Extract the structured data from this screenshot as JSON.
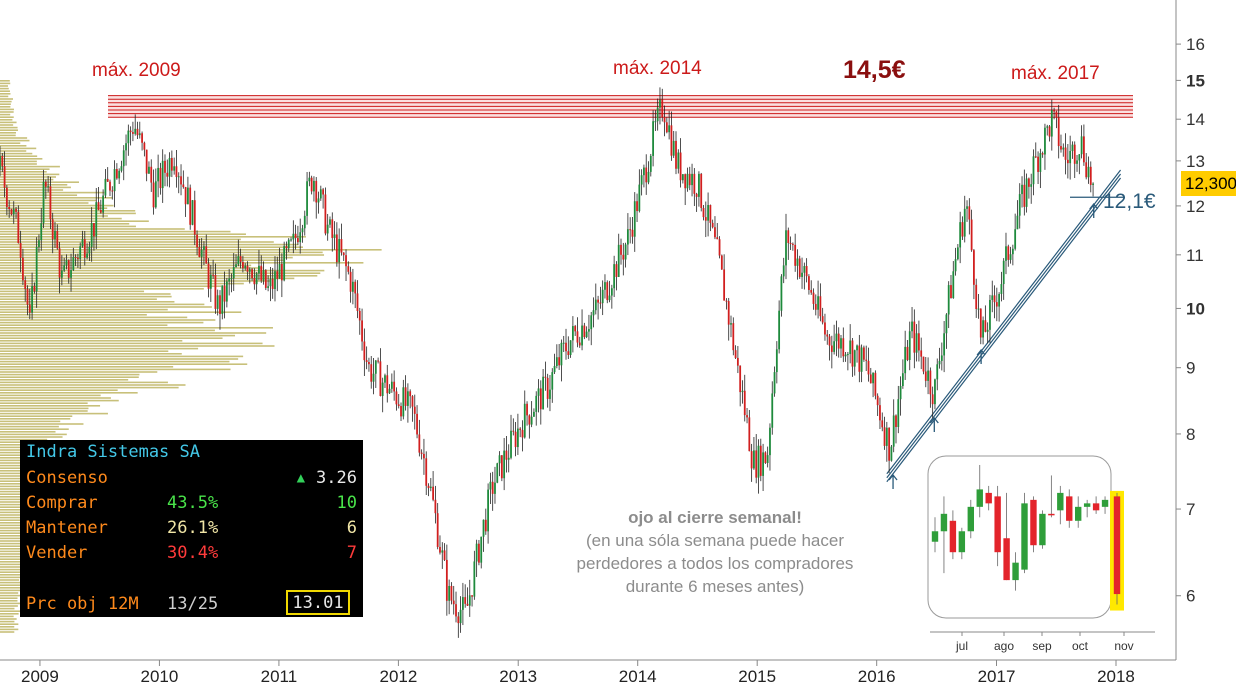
{
  "chart_data": {
    "type": "candlestick",
    "title": "",
    "instrument": "Indra Sistemas SA",
    "xlabel": "",
    "ylabel": "",
    "y_scale": "log",
    "ylim": [
      5.4,
      17
    ],
    "y_ticks": [
      6,
      7,
      8,
      9,
      10,
      11,
      12,
      13,
      14,
      15,
      16
    ],
    "x_ticks": [
      "2009",
      "2010",
      "2011",
      "2012",
      "2013",
      "2014",
      "2015",
      "2016",
      "2017",
      "2018"
    ],
    "xlim": [
      "2008-09-01",
      "2018-06-15"
    ],
    "last_price_label": "12,300",
    "resistance": {
      "label": "14,5€",
      "level": 14.3,
      "band": [
        14.05,
        14.6
      ]
    },
    "resistance_labels": [
      {
        "text": "máx. 2009",
        "date": "2009-10-01",
        "price": 14.0
      },
      {
        "text": "máx. 2014",
        "date": "2014-03-15",
        "price": 14.4
      },
      {
        "text": "máx. 2017",
        "date": "2017-06-01",
        "price": 14.0
      }
    ],
    "support_line": {
      "start": {
        "date": "2016-02-01",
        "price": 7.4
      },
      "end": {
        "date": "2018-01-15",
        "price": 12.7
      }
    },
    "support_level": {
      "label": "12,1€",
      "price": 12.1
    },
    "touch_arrows": [
      "2016-02-20",
      "2016-06-25",
      "2016-11-15",
      "2017-10-25"
    ],
    "price_path": [
      [
        "2008-09-01",
        12.8
      ],
      [
        "2008-11-01",
        11.3
      ],
      [
        "2008-12-01",
        9.7
      ],
      [
        "2009-01-15",
        12.5
      ],
      [
        "2009-03-10",
        10.5
      ],
      [
        "2009-06-15",
        11.6
      ],
      [
        "2009-10-15",
        13.9
      ],
      [
        "2009-12-15",
        12.3
      ],
      [
        "2010-02-15",
        13.2
      ],
      [
        "2010-05-20",
        10.8
      ],
      [
        "2010-07-01",
        10.0
      ],
      [
        "2010-09-15",
        11.0
      ],
      [
        "2010-12-01",
        10.3
      ],
      [
        "2011-02-15",
        11.2
      ],
      [
        "2011-04-15",
        12.7
      ],
      [
        "2011-06-01",
        11.5
      ],
      [
        "2011-08-10",
        10.5
      ],
      [
        "2011-10-01",
        9.0
      ],
      [
        "2011-12-20",
        8.6
      ],
      [
        "2012-02-15",
        8.3
      ],
      [
        "2012-04-01",
        7.4
      ],
      [
        "2012-06-01",
        6.0
      ],
      [
        "2012-07-25",
        5.8
      ],
      [
        "2012-10-15",
        7.3
      ],
      [
        "2013-01-15",
        8.2
      ],
      [
        "2013-04-01",
        8.7
      ],
      [
        "2013-06-01",
        9.4
      ],
      [
        "2013-09-01",
        10.0
      ],
      [
        "2013-12-01",
        11.3
      ],
      [
        "2014-01-15",
        12.5
      ],
      [
        "2014-02-15",
        13.5
      ],
      [
        "2014-03-20",
        14.4
      ],
      [
        "2014-05-01",
        12.9
      ],
      [
        "2014-07-01",
        12.5
      ],
      [
        "2014-09-01",
        11.0
      ],
      [
        "2014-11-01",
        9.0
      ],
      [
        "2014-12-20",
        7.6
      ],
      [
        "2015-02-01",
        7.7
      ],
      [
        "2015-04-01",
        11.4
      ],
      [
        "2015-06-01",
        10.5
      ],
      [
        "2015-08-01",
        9.5
      ],
      [
        "2015-10-01",
        9.4
      ],
      [
        "2015-12-01",
        9.0
      ],
      [
        "2016-02-10",
        7.8
      ],
      [
        "2016-04-15",
        9.6
      ],
      [
        "2016-06-25",
        8.6
      ],
      [
        "2016-08-15",
        10.4
      ],
      [
        "2016-09-30",
        12.1
      ],
      [
        "2016-11-15",
        9.4
      ],
      [
        "2017-01-15",
        10.5
      ],
      [
        "2017-03-15",
        12.0
      ],
      [
        "2017-05-01",
        13.0
      ],
      [
        "2017-06-20",
        14.0
      ],
      [
        "2017-08-01",
        13.0
      ],
      [
        "2017-09-15",
        13.5
      ],
      [
        "2017-10-25",
        12.3
      ]
    ],
    "volume_profile": "horizontal volume-by-price histogram at left, peak around 11.0",
    "inset": {
      "type": "candlestick",
      "x_ticks": [
        "jul",
        "ago",
        "sep",
        "oct",
        "nov"
      ],
      "candles": [
        {
          "o": 6.55,
          "h": 6.9,
          "l": 6.4,
          "c": 6.7,
          "up": true
        },
        {
          "o": 6.7,
          "h": 7.2,
          "l": 6.1,
          "c": 6.95,
          "up": true
        },
        {
          "o": 6.85,
          "h": 7.0,
          "l": 6.3,
          "c": 6.4,
          "up": false
        },
        {
          "o": 6.4,
          "h": 6.75,
          "l": 6.3,
          "c": 6.7,
          "up": true
        },
        {
          "o": 6.7,
          "h": 7.15,
          "l": 6.6,
          "c": 7.05,
          "up": true
        },
        {
          "o": 7.05,
          "h": 7.65,
          "l": 6.9,
          "c": 7.3,
          "up": true
        },
        {
          "o": 7.25,
          "h": 7.35,
          "l": 7.0,
          "c": 7.1,
          "up": false
        },
        {
          "o": 7.2,
          "h": 7.35,
          "l": 6.2,
          "c": 6.4,
          "up": false
        },
        {
          "o": 6.6,
          "h": 7.25,
          "l": 6.0,
          "c": 6.0,
          "up": false
        },
        {
          "o": 6.0,
          "h": 6.4,
          "l": 5.85,
          "c": 6.25,
          "up": true
        },
        {
          "o": 6.15,
          "h": 7.25,
          "l": 6.1,
          "c": 7.1,
          "up": true
        },
        {
          "o": 7.15,
          "h": 7.2,
          "l": 6.4,
          "c": 6.5,
          "up": false
        },
        {
          "o": 6.5,
          "h": 7.0,
          "l": 6.45,
          "c": 6.95,
          "up": true
        },
        {
          "o": 6.95,
          "h": 7.5,
          "l": 6.9,
          "c": 6.95,
          "up": false
        },
        {
          "o": 7.0,
          "h": 7.35,
          "l": 6.8,
          "c": 7.25,
          "up": true
        },
        {
          "o": 7.2,
          "h": 7.3,
          "l": 6.75,
          "c": 6.85,
          "up": false
        },
        {
          "o": 6.85,
          "h": 7.2,
          "l": 6.75,
          "c": 7.05,
          "up": true
        },
        {
          "o": 7.05,
          "h": 7.15,
          "l": 6.9,
          "c": 7.1,
          "up": true
        },
        {
          "o": 7.1,
          "h": 7.2,
          "l": 6.95,
          "c": 7.0,
          "up": false
        },
        {
          "o": 7.05,
          "h": 7.2,
          "l": 6.95,
          "c": 7.15,
          "up": true
        },
        {
          "o": 7.2,
          "h": 7.25,
          "l": 5.65,
          "c": 5.8,
          "up": false
        }
      ]
    }
  },
  "labels": {
    "max2009": "máx. 2009",
    "max2014": "máx. 2014",
    "max2017": "máx. 2017",
    "target": "14,5€",
    "support": "12,1€",
    "last_price": "12,300"
  },
  "consensus_panel": {
    "company": "Indra Sistemas SA",
    "rows": [
      {
        "label": "Consenso",
        "pct": "",
        "value": "3.26",
        "arrow": "▲"
      },
      {
        "label": "Comprar",
        "pct": "43.5%",
        "value": "10"
      },
      {
        "label": "Mantener",
        "pct": "26.1%",
        "value": "6"
      },
      {
        "label": "Vender",
        "pct": "30.4%",
        "value": "7"
      }
    ],
    "target": {
      "label": "Prc obj 12M",
      "date": "13/25",
      "value": "13.01"
    }
  },
  "note": {
    "title": "ojo al cierre semanal!",
    "body": "(en una sóla semana puede hacer perdedores a todos los compradores durante 6 meses antes)"
  },
  "colors": {
    "up": "#1e8a3c",
    "down": "#d11f1f",
    "resistance": "#cc1a1a",
    "support_line": "#2a5a7a",
    "volume_profile": "#c8c07a",
    "last_price_bg": "#ffcc00",
    "consenso_label": "#ff8a1c",
    "company_label": "#43c8e8",
    "comprar_pct": "#49e34a",
    "mantener_pct": "#f1e6a6",
    "vender_pct": "#ff3b3b"
  }
}
